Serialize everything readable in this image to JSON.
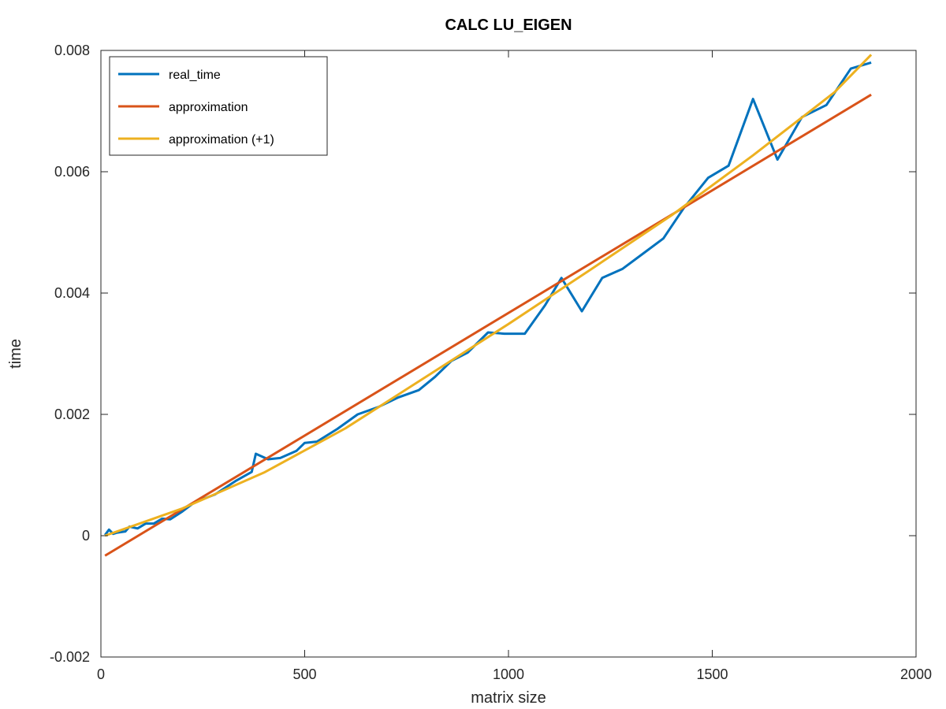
{
  "chart_data": {
    "type": "line",
    "title": "CALC LU_EIGEN",
    "xlabel": "matrix size",
    "ylabel": "time",
    "xlim": [
      0,
      2000
    ],
    "ylim": [
      -0.002,
      0.008
    ],
    "xticks": [
      0,
      500,
      1000,
      1500,
      2000
    ],
    "xtick_labels": [
      "0",
      "500",
      "1000",
      "1500",
      "2000"
    ],
    "yticks": [
      -0.002,
      0,
      0.002,
      0.004,
      0.006,
      0.008
    ],
    "ytick_labels": [
      "-0.002",
      "0",
      "0.002",
      "0.004",
      "0.006",
      "0.008"
    ],
    "grid": false,
    "legend_position": "top-left",
    "series": [
      {
        "name": "real_time",
        "color": "#0072BD",
        "x": [
          10,
          20,
          30,
          40,
          60,
          70,
          90,
          110,
          130,
          150,
          170,
          200,
          230,
          280,
          330,
          370,
          380,
          410,
          440,
          480,
          500,
          530,
          580,
          630,
          680,
          730,
          780,
          820,
          860,
          900,
          950,
          990,
          1040,
          1090,
          1130,
          1180,
          1230,
          1280,
          1330,
          1380,
          1430,
          1490,
          1540,
          1600,
          1660,
          1720,
          1780,
          1840,
          1890
        ],
        "y": [
          1e-05,
          0.0001,
          3e-05,
          5e-05,
          7e-05,
          0.00015,
          0.00012,
          0.0002,
          0.0002,
          0.00028,
          0.00027,
          0.0004,
          0.00055,
          0.00068,
          0.0009,
          0.00105,
          0.00135,
          0.00126,
          0.00128,
          0.0014,
          0.00153,
          0.00155,
          0.00176,
          0.002,
          0.00212,
          0.00228,
          0.0024,
          0.00262,
          0.00288,
          0.00302,
          0.00335,
          0.00333,
          0.00333,
          0.0038,
          0.00425,
          0.0037,
          0.00425,
          0.0044,
          0.00465,
          0.0049,
          0.0054,
          0.0059,
          0.0061,
          0.0072,
          0.0062,
          0.0069,
          0.0071,
          0.0077,
          0.0078
        ]
      },
      {
        "name": "approximation",
        "color": "#D95319",
        "x": [
          10,
          1890
        ],
        "y": [
          -0.00033,
          0.00727
        ]
      },
      {
        "name": "approximation (+1)",
        "color": "#EDB120",
        "x": [
          10,
          200,
          400,
          600,
          800,
          1000,
          1200,
          1400,
          1600,
          1800,
          1890
        ],
        "y": [
          0.0,
          0.00045,
          0.00104,
          0.00177,
          0.00263,
          0.00349,
          0.00438,
          0.00528,
          0.00627,
          0.00731,
          0.00793
        ]
      }
    ]
  }
}
